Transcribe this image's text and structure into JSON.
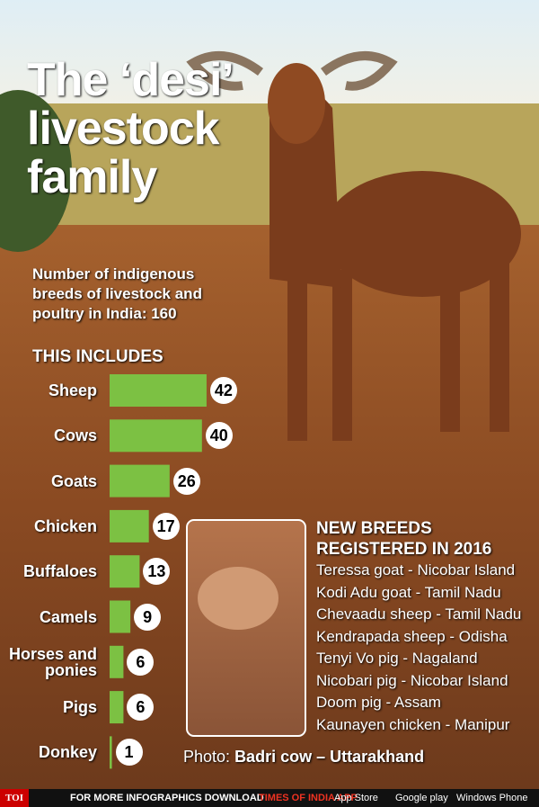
{
  "chart_data": {
    "type": "bar",
    "orientation": "horizontal",
    "title": "The ‘desi’ livestock family",
    "subtitle": "Number of indigenous breeds of livestock and poultry in India: 160",
    "section_label": "THIS INCLUDES",
    "categories": [
      "Sheep",
      "Cows",
      "Goats",
      "Chicken",
      "Buffaloes",
      "Camels",
      "Horses and ponies",
      "Pigs",
      "Donkey"
    ],
    "values": [
      42,
      40,
      26,
      17,
      13,
      9,
      6,
      6,
      1
    ],
    "color": "#7cc143",
    "new_breeds_title": "NEW BREEDS REGISTERED IN 2016",
    "new_breeds": [
      "Teressa goat - Nicobar Island",
      "Kodi Adu goat - Tamil Nadu",
      "Chevaadu sheep - Tamil Nadu",
      "Kendrapada sheep - Odisha",
      "Tenyi Vo pig - Nagaland",
      "Nicobari pig - Nicobar Island",
      "Doom pig - Assam",
      "Kaunayen chicken - Manipur"
    ],
    "photo_caption_prefix": "Photo:",
    "photo_caption": "Badri cow – Uttarakhand",
    "footer": {
      "brand": "TOI",
      "text": "FOR MORE INFOGRAPHICS DOWNLOAD",
      "app": "TIMES OF INDIA APP",
      "stores": [
        "App Store",
        "Google play",
        "Windows Phone"
      ]
    }
  }
}
